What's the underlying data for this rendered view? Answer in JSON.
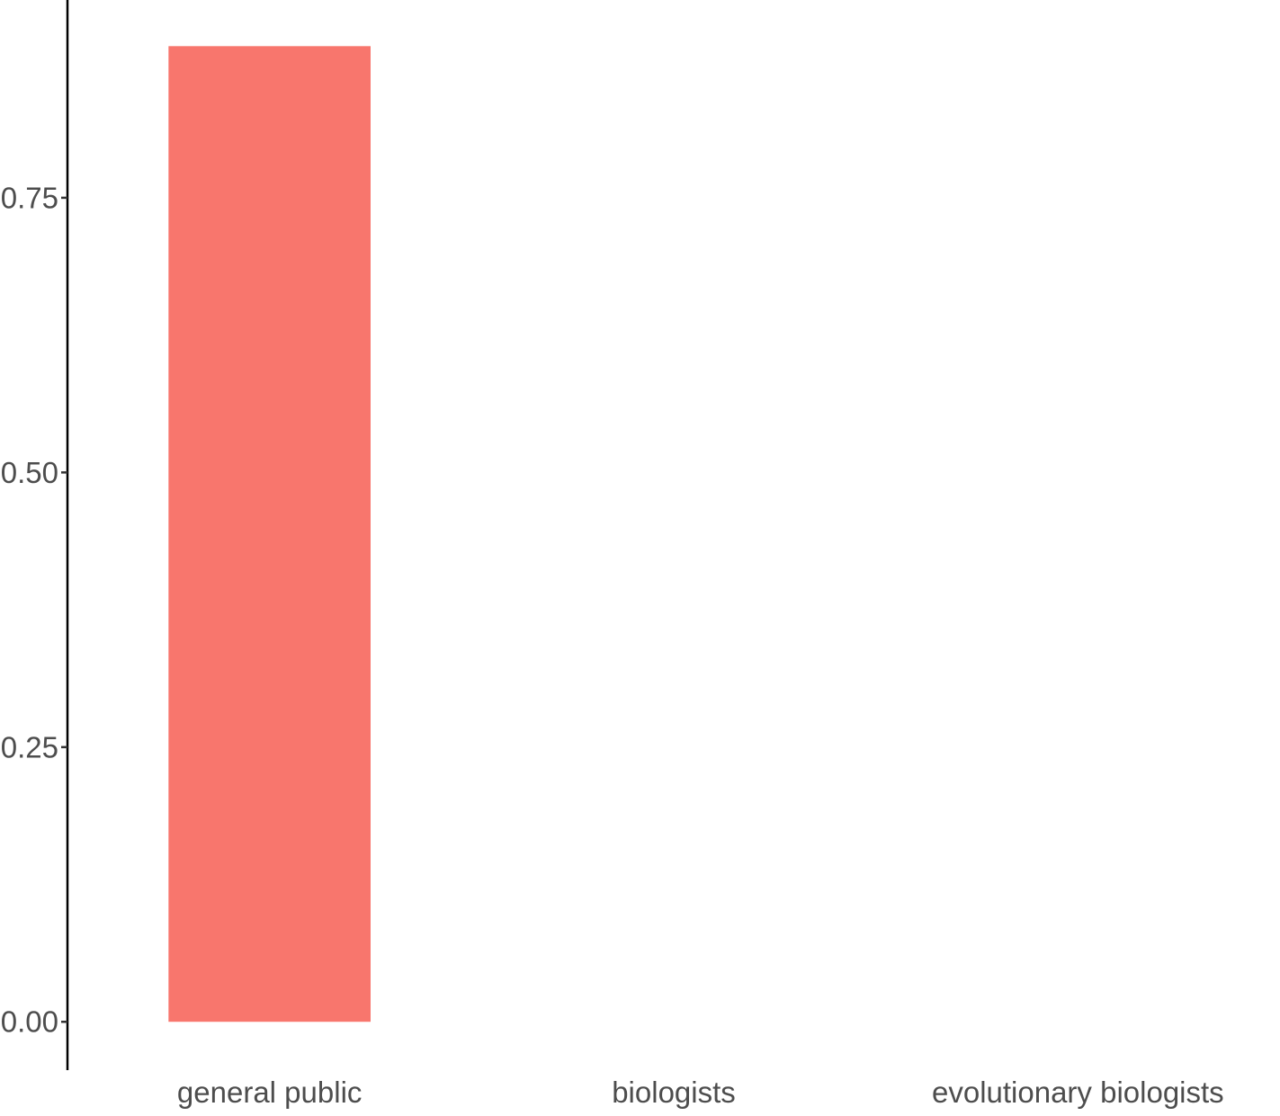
{
  "chart_data": {
    "type": "bar",
    "categories": [
      "general public",
      "biologists",
      "evolutionary biologists"
    ],
    "values": [
      0.888,
      0,
      0
    ],
    "title": "",
    "xlabel": "",
    "ylabel": "",
    "ylim": [
      -0.044,
      0.93
    ],
    "yticks": [
      0,
      0.25,
      0.5,
      0.75
    ],
    "ytick_labels": [
      "0.00",
      "0.25",
      "0.50",
      "0.75"
    ],
    "bar_color": "#F8766D",
    "grid": false,
    "legend": "none"
  }
}
